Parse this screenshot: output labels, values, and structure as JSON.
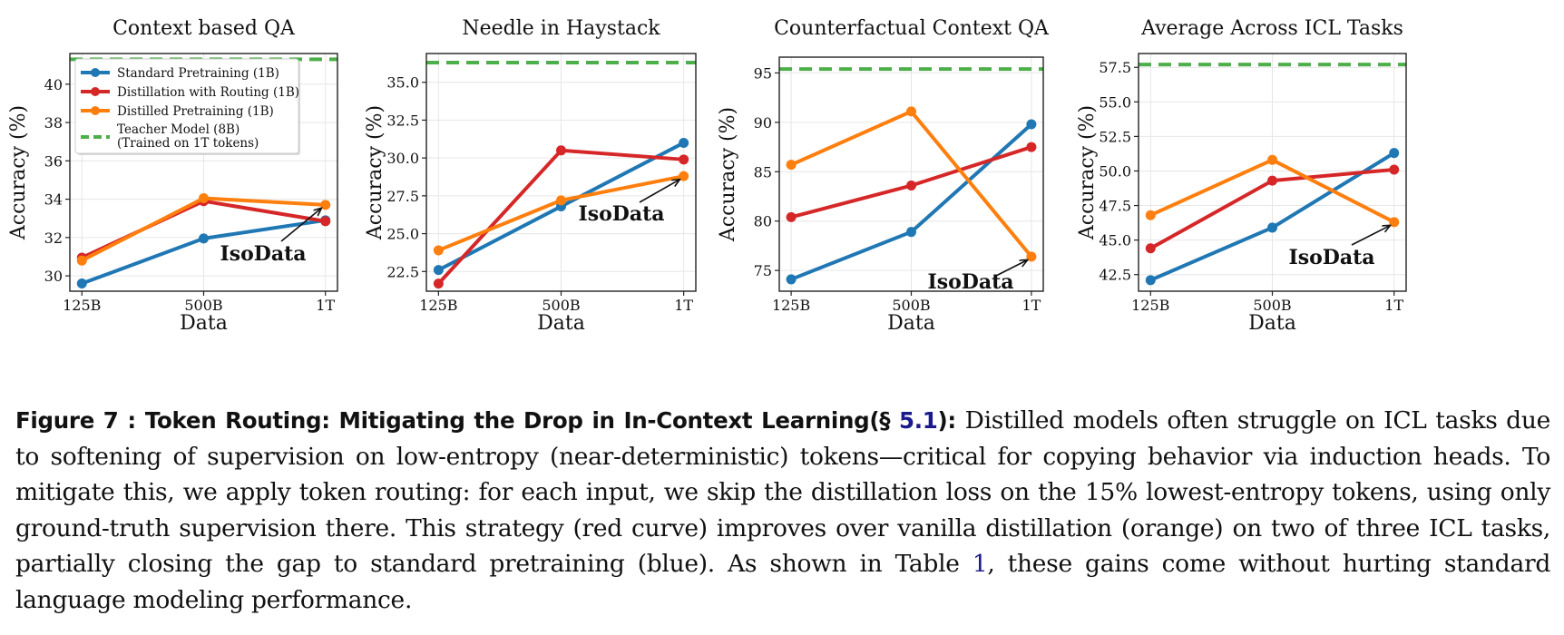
{
  "chart_data": [
    {
      "type": "line",
      "title": "Context based QA",
      "xlabel": "Data",
      "ylabel": "Accuracy (%)",
      "categories": [
        "125B",
        "500B",
        "1T"
      ],
      "ylim": [
        29.2,
        41.6
      ],
      "yticks": [
        30,
        32,
        34,
        36,
        38,
        40
      ],
      "ytick_labels": [
        "30",
        "32",
        "34",
        "36",
        "38",
        "40"
      ],
      "grid": true,
      "teacher": 41.3,
      "series": [
        {
          "name": "Standard Pretraining (1B)",
          "color": "#1f77b4",
          "values": [
            29.6,
            31.95,
            32.9
          ]
        },
        {
          "name": "Distillation with Routing (1B)",
          "color": "#d62728",
          "values": [
            30.95,
            33.9,
            32.85
          ]
        },
        {
          "name": "Distilled Pretraining (1B)",
          "color": "#ff7f0e",
          "values": [
            30.8,
            34.05,
            33.7
          ]
        }
      ],
      "annotation": {
        "text": "IsoData",
        "target": [
          2,
          33.7
        ]
      },
      "legend": {
        "placement": "top-left",
        "items": [
          {
            "label": "Standard Pretraining (1B)",
            "color": "#1f77b4",
            "style": "solid"
          },
          {
            "label": "Distillation with Routing (1B)",
            "color": "#d62728",
            "style": "solid"
          },
          {
            "label": "Distilled Pretraining (1B)",
            "color": "#ff7f0e",
            "style": "solid"
          },
          {
            "label": [
              "Teacher Model (8B)",
              "(Trained on 1T tokens)"
            ],
            "color": "#4daf4a",
            "style": "dashed"
          }
        ]
      }
    },
    {
      "type": "line",
      "title": "Needle in Haystack",
      "xlabel": "Data",
      "ylabel": "Accuracy (%)",
      "categories": [
        "125B",
        "500B",
        "1T"
      ],
      "ylim": [
        21.2,
        36.9
      ],
      "yticks": [
        22.5,
        25.0,
        27.5,
        30.0,
        32.5,
        35.0
      ],
      "ytick_labels": [
        "22.5",
        "25.0",
        "27.5",
        "30.0",
        "32.5",
        "35.0"
      ],
      "grid": true,
      "teacher": 36.3,
      "series": [
        {
          "name": "Standard Pretraining (1B)",
          "color": "#1f77b4",
          "values": [
            22.6,
            26.8,
            31.0
          ]
        },
        {
          "name": "Distillation with Routing (1B)",
          "color": "#d62728",
          "values": [
            21.7,
            30.5,
            29.9
          ]
        },
        {
          "name": "Distilled Pretraining (1B)",
          "color": "#ff7f0e",
          "values": [
            23.9,
            27.2,
            28.8
          ]
        }
      ],
      "annotation": {
        "text": "IsoData",
        "target": [
          2,
          28.8
        ]
      }
    },
    {
      "type": "line",
      "title": "Counterfactual Context QA",
      "xlabel": "Data",
      "ylabel": "Accuracy (%)",
      "categories": [
        "125B",
        "500B",
        "1T"
      ],
      "ylim": [
        72.9,
        96.6
      ],
      "yticks": [
        75,
        80,
        85,
        90,
        95
      ],
      "ytick_labels": [
        "75",
        "80",
        "85",
        "90",
        "95"
      ],
      "grid": true,
      "teacher": 95.4,
      "series": [
        {
          "name": "Standard Pretraining (1B)",
          "color": "#1f77b4",
          "values": [
            74.1,
            78.9,
            89.8
          ]
        },
        {
          "name": "Distillation with Routing (1B)",
          "color": "#d62728",
          "values": [
            80.4,
            83.6,
            87.5
          ]
        },
        {
          "name": "Distilled Pretraining (1B)",
          "color": "#ff7f0e",
          "values": [
            85.7,
            91.1,
            76.4
          ]
        }
      ],
      "annotation": {
        "text": "IsoData",
        "target": [
          2,
          76.4
        ]
      }
    },
    {
      "type": "line",
      "title": "Average Across ICL Tasks",
      "xlabel": "Data",
      "ylabel": "Accuracy (%)",
      "categories": [
        "125B",
        "500B",
        "1T"
      ],
      "ylim": [
        41.3,
        58.5
      ],
      "yticks": [
        42.5,
        45.0,
        47.5,
        50.0,
        52.5,
        55.0,
        57.5
      ],
      "ytick_labels": [
        "42.5",
        "45.0",
        "47.5",
        "50.0",
        "52.5",
        "55.0",
        "57.5"
      ],
      "grid": true,
      "teacher": 57.7,
      "series": [
        {
          "name": "Standard Pretraining (1B)",
          "color": "#1f77b4",
          "values": [
            42.1,
            45.9,
            51.3
          ]
        },
        {
          "name": "Distillation with Routing (1B)",
          "color": "#d62728",
          "values": [
            44.4,
            49.3,
            50.1
          ]
        },
        {
          "name": "Distilled Pretraining (1B)",
          "color": "#ff7f0e",
          "values": [
            46.8,
            50.8,
            46.3
          ]
        }
      ],
      "annotation": {
        "text": "IsoData",
        "target": [
          2,
          46.3
        ]
      }
    }
  ],
  "teacher_color": "#4daf4a",
  "caption": {
    "label": "Figure 7 :",
    "title_prefix": "Token Routing: Mitigating the Drop in In-Context Learning(§ ",
    "section_ref": "5.1",
    "title_suffix": "):",
    "text_1": "Distilled models often struggle on ICL tasks due to softening of supervision on low-entropy (near-deterministic) tokens—critical for copying behavior via induction heads. To mitigate this, we apply token routing: for each input, we skip the distillation loss on the 15% lowest-entropy tokens, using only ground-truth supervision there. This strategy (red curve) improves over vanilla distillation (orange) on two of three ICL tasks, partially closing the gap to standard pretraining (blue). As shown in Table ",
    "table_ref": "1",
    "text_2": ", these gains come without hurting standard language modeling performance."
  }
}
